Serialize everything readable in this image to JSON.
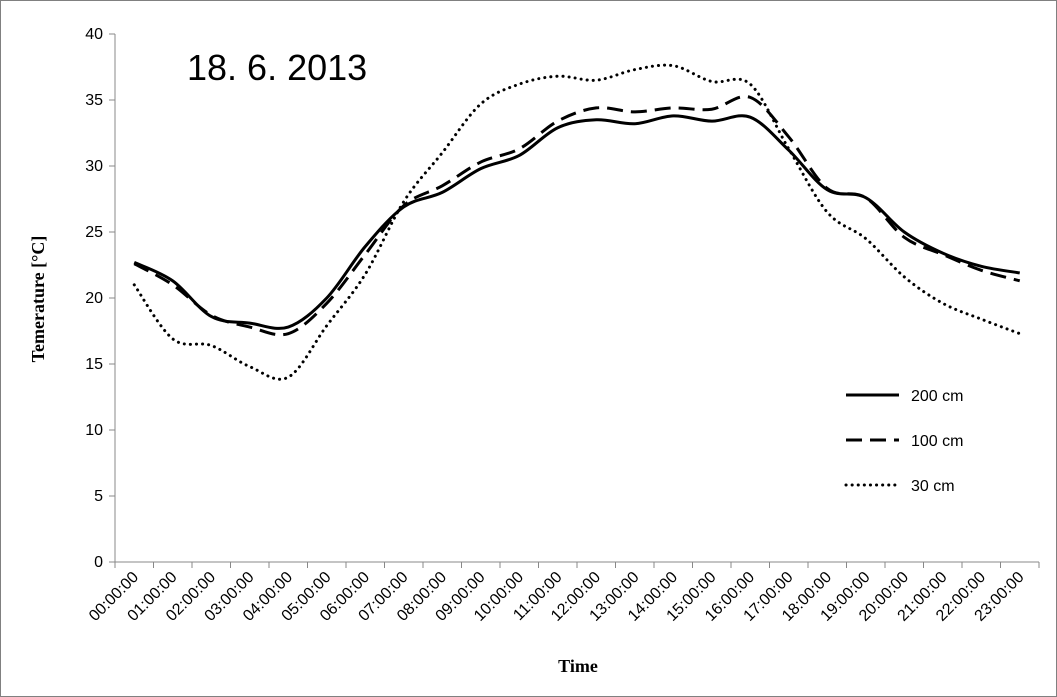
{
  "chart_data": {
    "type": "line",
    "title": "",
    "annotation": "18. 6. 2013",
    "xlabel": "Time",
    "ylabel": "Temerature [°C]",
    "ylim": [
      0,
      40
    ],
    "yticks": [
      "0",
      "5",
      "10",
      "15",
      "20",
      "25",
      "30",
      "35",
      "40"
    ],
    "categories": [
      "00:00:00",
      "01:00:00",
      "02:00:00",
      "03:00:00",
      "04:00:00",
      "05:00:00",
      "06:00:00",
      "07:00:00",
      "08:00:00",
      "09:00:00",
      "10:00:00",
      "11:00:00",
      "12:00:00",
      "13:00:00",
      "14:00:00",
      "15:00:00",
      "16:00:00",
      "17:00:00",
      "18:00:00",
      "19:00:00",
      "20:00:00",
      "21:00:00",
      "22:00:00",
      "23:00:00"
    ],
    "grid": false,
    "legend_position": "right",
    "series": [
      {
        "name": "200 cm",
        "style": "solid",
        "color": "#000000",
        "values": [
          22.7,
          21.3,
          18.6,
          18.1,
          17.8,
          20.0,
          23.9,
          26.9,
          28.0,
          29.8,
          30.8,
          32.9,
          33.5,
          33.2,
          33.8,
          33.4,
          33.7,
          31.2,
          28.2,
          27.6,
          25.0,
          23.4,
          22.4,
          21.9
        ]
      },
      {
        "name": "100 cm",
        "style": "dashed",
        "color": "#000000",
        "values": [
          22.6,
          21.0,
          18.7,
          17.8,
          17.3,
          19.6,
          23.3,
          27.0,
          28.5,
          30.3,
          31.3,
          33.4,
          34.4,
          34.1,
          34.4,
          34.3,
          35.2,
          32.2,
          28.3,
          27.6,
          24.6,
          23.3,
          22.1,
          21.3
        ]
      },
      {
        "name": "30 cm",
        "style": "dotted",
        "color": "#000000",
        "values": [
          21.0,
          16.9,
          16.4,
          14.8,
          14.0,
          17.9,
          21.8,
          27.3,
          31.0,
          34.7,
          36.2,
          36.8,
          36.5,
          37.3,
          37.6,
          36.4,
          36.2,
          31.3,
          26.5,
          24.5,
          21.6,
          19.6,
          18.4,
          17.3
        ]
      }
    ]
  }
}
